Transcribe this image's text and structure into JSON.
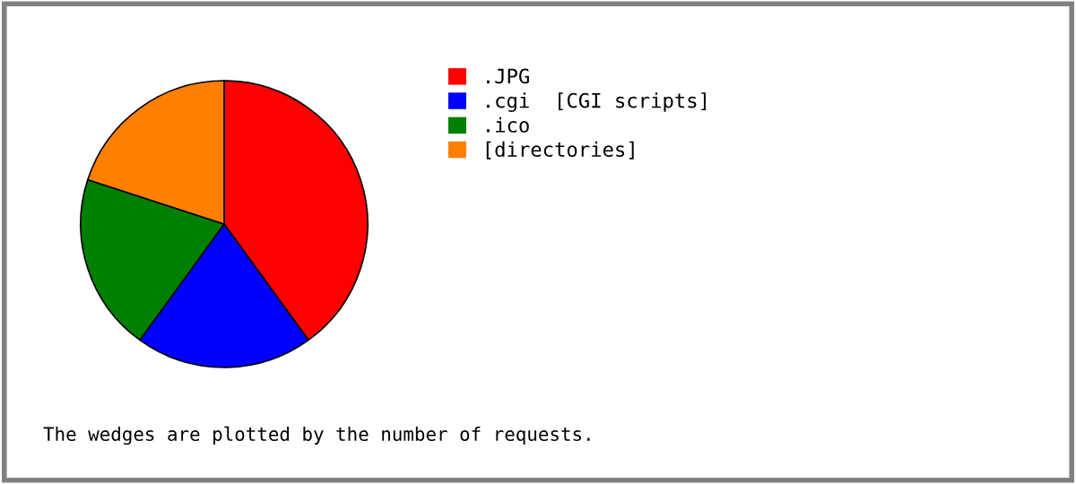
{
  "chart_data": {
    "type": "pie",
    "categories": [
      ".JPG",
      ".cgi  [CGI scripts]",
      ".ico",
      "[directories]"
    ],
    "values": [
      40,
      20,
      20,
      20
    ],
    "colors": [
      "#ff0000",
      "#0000ff",
      "#008000",
      "#ff8000"
    ],
    "legend": "right",
    "annotations": [
      "The wedges are plotted by the number of requests."
    ]
  }
}
